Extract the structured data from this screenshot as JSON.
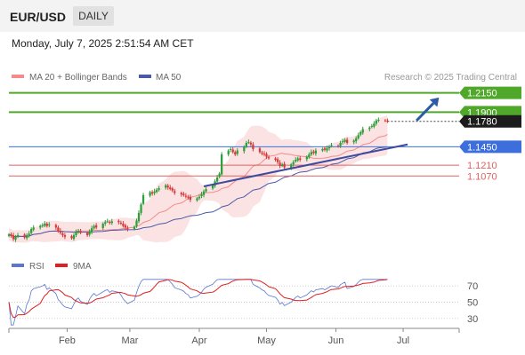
{
  "header": {
    "symbol": "EUR/USD",
    "timeframe": "DAILY",
    "timestamp": "Monday, July 7, 2025 2:51:54 AM CET"
  },
  "colors": {
    "candle_up": "#2e9e3a",
    "candle_down": "#d63a3a",
    "bollinger": "#f48a8a",
    "bollinger_fill": "#fcdede",
    "ma50": "#4a5aa8",
    "resistance": "#4fa829",
    "pivot": "#3d6fdc",
    "support": "#e06060",
    "trendline": "#3d4a9e",
    "arrow": "#2c5ca8",
    "rsi": "#5a76d0",
    "ma9": "#e02020"
  },
  "chart_data": [
    {
      "type": "candlestick",
      "legend": [
        {
          "name": "MA 20 + Bollinger Bands",
          "color": "#f48a8a"
        },
        {
          "name": "MA 50",
          "color": "#4a5aa8"
        }
      ],
      "attribution": "Research © 2025 Trading Central",
      "ylim": [
        1.015,
        1.225
      ],
      "x_range": [
        "2025-01-06",
        "2025-07-26"
      ],
      "month_labels": [
        {
          "date": "2025-02-01",
          "label": "Feb"
        },
        {
          "date": "2025-03-01",
          "label": "Mar"
        },
        {
          "date": "2025-04-01",
          "label": "Apr"
        },
        {
          "date": "2025-05-01",
          "label": "May"
        },
        {
          "date": "2025-06-01",
          "label": "Jun"
        },
        {
          "date": "2025-07-01",
          "label": "Jul"
        }
      ],
      "levels": [
        {
          "label": "1.2150",
          "value": 1.215,
          "kind": "resistance"
        },
        {
          "label": "1.1900",
          "value": 1.19,
          "kind": "resistance"
        },
        {
          "label": "1.1780",
          "value": 1.178,
          "kind": "last"
        },
        {
          "label": "1.1450",
          "value": 1.145,
          "kind": "pivot"
        },
        {
          "label": "1.1210",
          "value": 1.121,
          "kind": "support"
        },
        {
          "label": "1.1070",
          "value": 1.107,
          "kind": "support"
        }
      ],
      "trendlines": [
        {
          "from": {
            "date": "2025-04-03",
            "value": 1.0935
          },
          "to": {
            "date": "2025-07-03",
            "value": 1.148
          }
        }
      ],
      "forecast_arrow": {
        "from": {
          "date": "2025-07-07",
          "value": 1.179
        },
        "to": {
          "date": "2025-07-17",
          "value": 1.209
        }
      },
      "closes": [
        1.031,
        1.029,
        1.025,
        1.028,
        1.03,
        1.027,
        1.03,
        1.032,
        1.038,
        1.04,
        1.042,
        1.043,
        1.045,
        1.042,
        1.044,
        1.04,
        1.035,
        1.033,
        1.03,
        1.028,
        1.026,
        1.03,
        1.034,
        1.036,
        1.033,
        1.03,
        1.035,
        1.039,
        1.042,
        1.04,
        1.045,
        1.047,
        1.048,
        1.046,
        1.048,
        1.047,
        1.045,
        1.042,
        1.04,
        1.038,
        1.041,
        1.049,
        1.059,
        1.07,
        1.082,
        1.086,
        1.084,
        1.087,
        1.089,
        1.091,
        1.095,
        1.092,
        1.09,
        1.088,
        1.085,
        1.083,
        1.082,
        1.08,
        1.079,
        1.076,
        1.078,
        1.08,
        1.083,
        1.087,
        1.09,
        1.095,
        1.1,
        1.105,
        1.11,
        1.135,
        1.14,
        1.142,
        1.138,
        1.135,
        1.14,
        1.145,
        1.15,
        1.151,
        1.148,
        1.142,
        1.138,
        1.136,
        1.135,
        1.132,
        1.13,
        1.128,
        1.125,
        1.12,
        1.122,
        1.118,
        1.122,
        1.125,
        1.128,
        1.13,
        1.128,
        1.132,
        1.135,
        1.138,
        1.137,
        1.14,
        1.142,
        1.141,
        1.143,
        1.145,
        1.147,
        1.146,
        1.15,
        1.152,
        1.154,
        1.15,
        1.153,
        1.156,
        1.16,
        1.164,
        1.168,
        1.17,
        1.172,
        1.175,
        1.179,
        1.18,
        1.179,
        1.178
      ]
    },
    {
      "type": "line",
      "legend": [
        {
          "name": "RSI",
          "color": "#5a76d0"
        },
        {
          "name": "9MA",
          "color": "#e02020"
        }
      ],
      "ylim": [
        20,
        80
      ],
      "y_ticks": [
        30,
        50,
        70
      ]
    }
  ]
}
